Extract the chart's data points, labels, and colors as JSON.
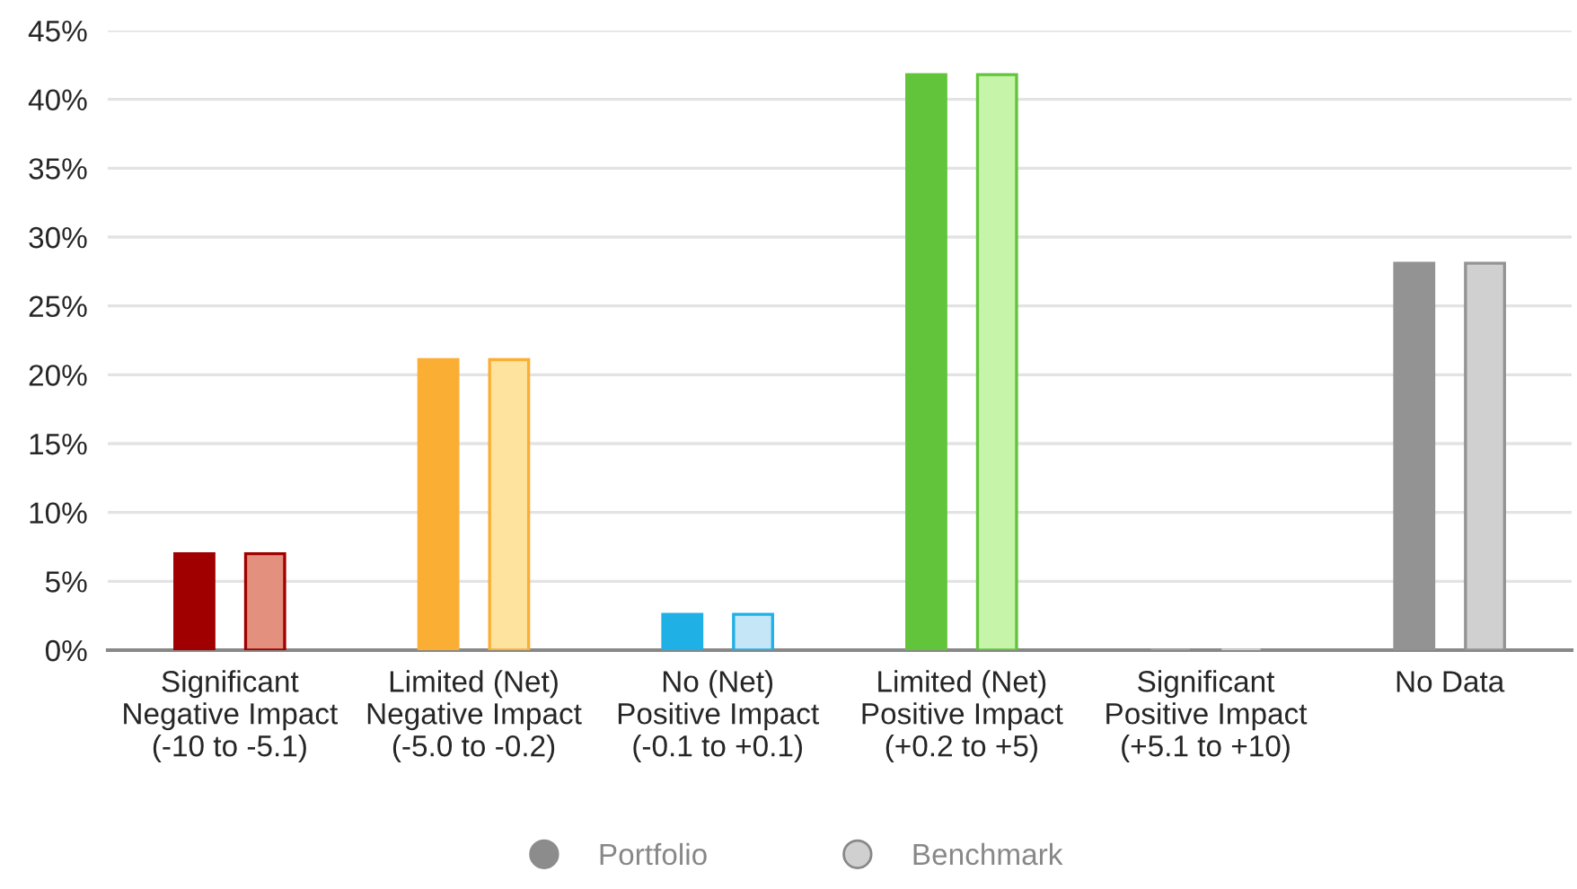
{
  "chart_data": {
    "type": "bar",
    "categories": [
      "Significant\nNegative Impact\n(-10 to -5.1)",
      "Limited (Net)\nNegative Impact\n(-5.0 to -0.2)",
      "No (Net)\nPositive Impact\n(-0.1 to +0.1)",
      "Limited (Net)\nPositive Impact\n(+0.2 to +5)",
      "Significant\nPositive Impact\n(+5.1 to +10)",
      "No Data"
    ],
    "series": [
      {
        "name": "Portfolio",
        "color": "#8c8c8c",
        "colors": [
          "#a00000",
          "#fbae34",
          "#1fb0e6",
          "#62c43b",
          "#a0a0a0",
          "#939393"
        ],
        "values": [
          7,
          21.1,
          2.6,
          41.8,
          0,
          28.1
        ]
      },
      {
        "name": "Benchmark",
        "color": "#d0d0d0",
        "colors": [
          "#e3907e",
          "#fde39e",
          "#c4e6f6",
          "#c6f5aa",
          "#d0d0d0",
          "#d0d0d0"
        ],
        "values": [
          7,
          21.1,
          2.6,
          41.8,
          0,
          28.1
        ]
      }
    ],
    "ylim": [
      0,
      45
    ],
    "yticks": [
      {
        "value": 0,
        "label": "0%"
      },
      {
        "value": 5,
        "label": "5%"
      },
      {
        "value": 10,
        "label": "10%"
      },
      {
        "value": 15,
        "label": "15%"
      },
      {
        "value": 20,
        "label": "20%"
      },
      {
        "value": 25,
        "label": "25%"
      },
      {
        "value": 30,
        "label": "30%"
      },
      {
        "value": 35,
        "label": "35%"
      },
      {
        "value": 40,
        "label": "40%"
      },
      {
        "value": 45,
        "label": "45%"
      }
    ],
    "grid": "y",
    "legend": "bottom"
  }
}
